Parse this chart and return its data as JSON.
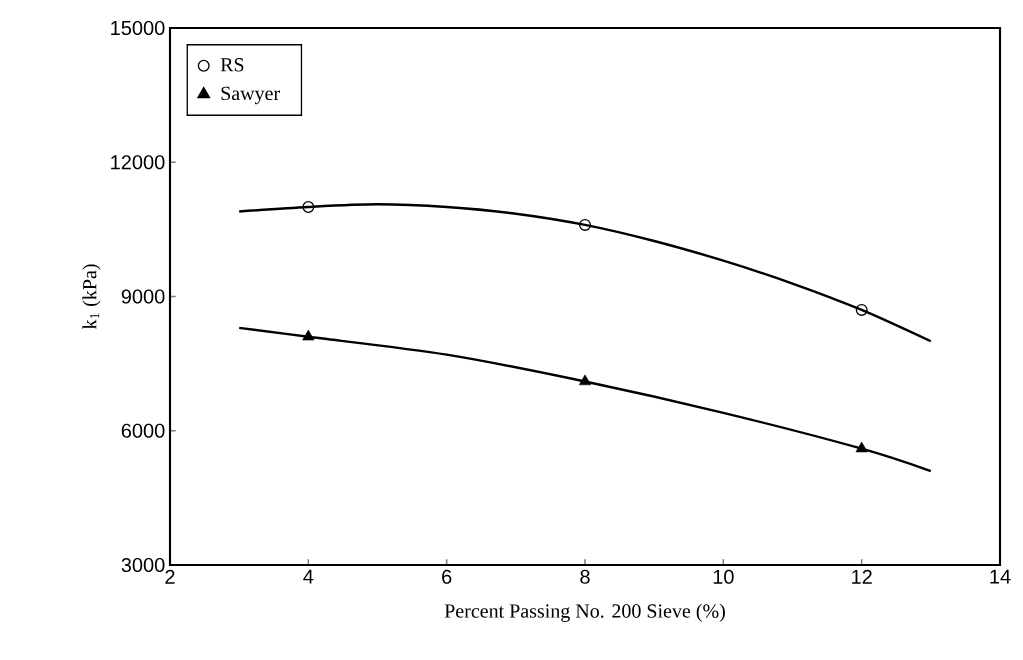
{
  "chart_data": {
    "type": "scatter",
    "xlabel": "Percent Passing No. 200 Sieve (%)",
    "ylabel": "k$_{1}$ (kPa)",
    "xlim": [
      2,
      14
    ],
    "xticks": [
      2,
      4,
      6,
      8,
      10,
      12,
      14
    ],
    "ylim": [
      3000,
      15000
    ],
    "yticks": [
      3000,
      6000,
      9000,
      12000,
      15000
    ],
    "legend": "top left",
    "grid": false,
    "series": [
      {
        "name": "RS",
        "marker": "circle",
        "color": "#000000",
        "x": [
          4,
          8,
          12
        ],
        "values": [
          11000,
          10600,
          8700
        ]
      },
      {
        "name": "Sawyer",
        "marker": "triangle",
        "color": "#000000",
        "x": [
          4,
          8,
          12
        ],
        "values": [
          8100,
          7100,
          5600
        ]
      },
      {
        "type": "line",
        "marker": "none",
        "color": "#000000",
        "x": [
          3,
          4,
          5,
          6,
          7,
          8,
          9,
          10,
          11,
          12,
          13
        ],
        "values": [
          10900,
          11000,
          11060,
          11000,
          10850,
          10600,
          10240,
          9800,
          9290,
          8700,
          8000
        ]
      },
      {
        "type": "line",
        "marker": "none",
        "color": "#000000",
        "x": [
          3,
          4,
          6,
          8,
          10,
          12,
          13
        ],
        "values": [
          8300,
          8100,
          7700,
          7100,
          6400,
          5600,
          5100
        ]
      }
    ]
  }
}
